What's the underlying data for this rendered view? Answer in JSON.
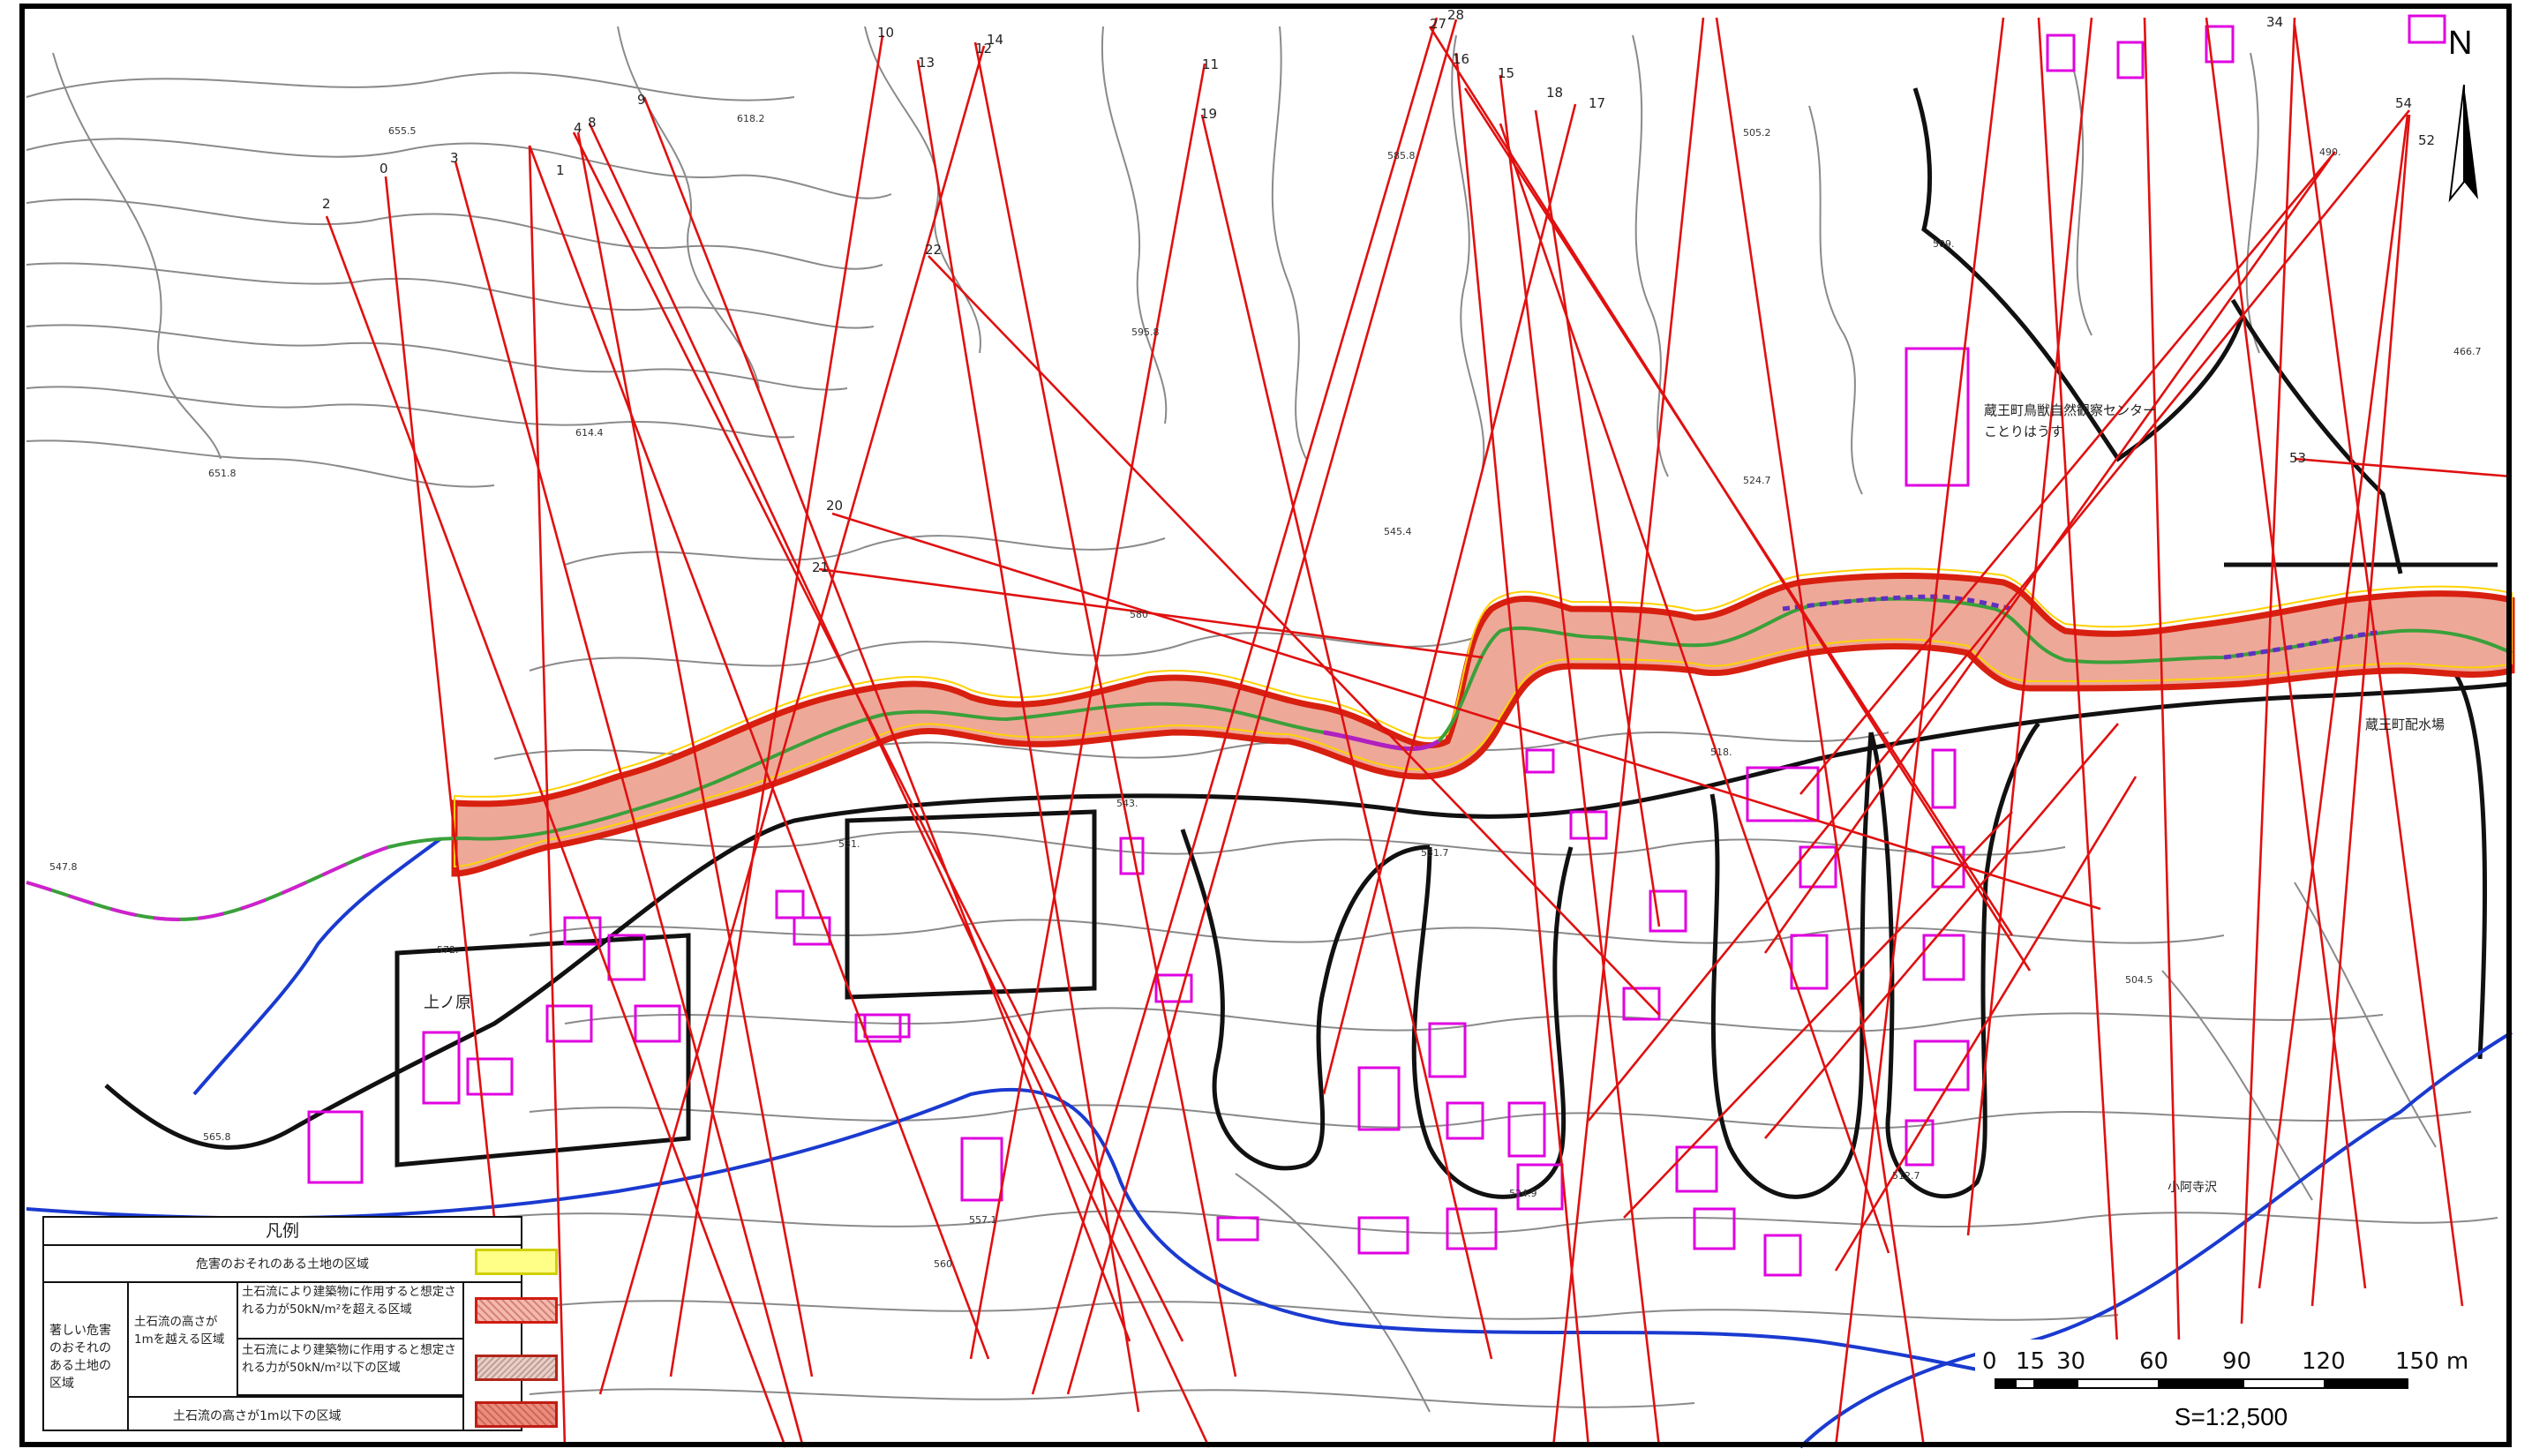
{
  "map": {
    "north_label": "N",
    "scale_label": "S=1:2,500",
    "scale_ticks": [
      "0",
      "15",
      "30",
      "60",
      "90",
      "120",
      "150 m"
    ],
    "place_labels": {
      "kaminohara": "上ノ原",
      "nature_center_1": "蔵王町鳥獣自然観察センター",
      "nature_center_2": "ことりはうす",
      "water_facility": "蔵王町配水場",
      "kosuge_dam": "小阿寺沢"
    },
    "section_numbers": [
      "0",
      "1",
      "2",
      "3",
      "4",
      "8",
      "9",
      "10",
      "11",
      "12",
      "13",
      "14",
      "15",
      "16",
      "17",
      "18",
      "19",
      "20",
      "21",
      "22",
      "27",
      "28",
      "34",
      "52",
      "53",
      "54"
    ],
    "elevations": [
      "655.5",
      "618.2",
      "651.8",
      "614.4",
      "585.8",
      "505.2",
      "595.8",
      "545.4",
      "524.7",
      "490.",
      "466.7",
      "543.",
      "531.7",
      "531.",
      "518.",
      "504.5",
      "509.",
      "572.",
      "547.8",
      "565.8",
      "557.1",
      "524.9",
      "512.7",
      "580",
      "560"
    ]
  },
  "legend": {
    "title": "凡例",
    "row_warning": "危害のおそれのある土地の区域",
    "row_special_head": "著しい危害のおそれのある土地の区域",
    "row_height_over": "土石流の高さが1mを越える区域",
    "row_force_over": "土石流により建築物に作用すると想定される力が50kN/m²を超える区域",
    "row_force_under": "土石流により建築物に作用すると想定される力が50kN/m²以下の区域",
    "row_height_under": "土石流の高さが1m以下の区域"
  },
  "colors": {
    "section_line": "#e01010",
    "zone_fill": "#e8a494",
    "zone_border": "#d02010",
    "contour": "#888888",
    "road": "#111111",
    "river": "#1a3ad0",
    "building": "#e000e0"
  }
}
